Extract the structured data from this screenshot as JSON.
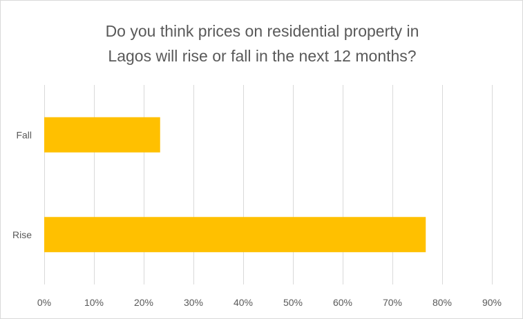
{
  "chart_data": {
    "type": "bar",
    "orientation": "horizontal",
    "title_lines": [
      "Do you think prices on residential property in",
      "Lagos will rise or fall in the next 12 months?"
    ],
    "categories": [
      "Fall",
      "Rise"
    ],
    "values": [
      23.3,
      76.7
    ],
    "value_unit": "%",
    "xlim": [
      0,
      90
    ],
    "x_ticks": [
      0,
      10,
      20,
      30,
      40,
      50,
      60,
      70,
      80,
      90
    ],
    "x_tick_labels": [
      "0%",
      "10%",
      "20%",
      "30%",
      "40%",
      "50%",
      "60%",
      "70%",
      "80%",
      "90%"
    ],
    "grid": "vertical",
    "legend": "none",
    "bar_color": "#FFC000",
    "grid_color": "#D9D9D9"
  }
}
